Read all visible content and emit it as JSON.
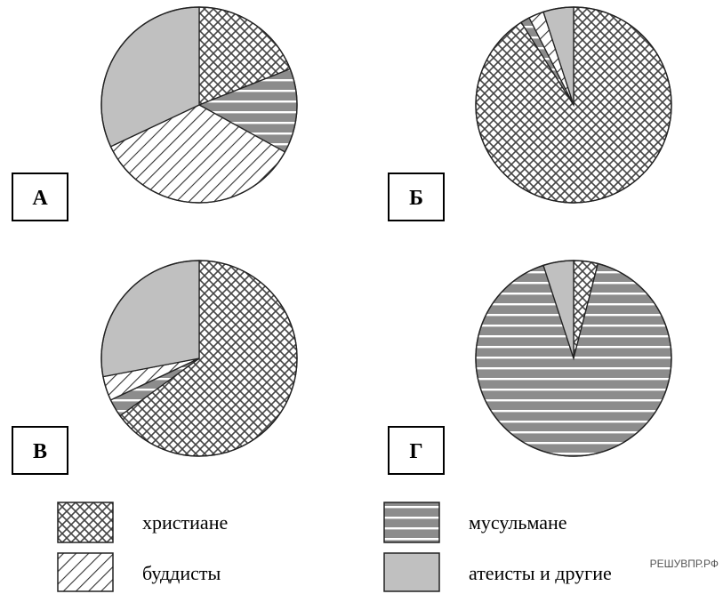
{
  "colors": {
    "christian_bg": "#ffffff",
    "muslim_bg": "#8c8c8c",
    "buddhist_bg": "#ffffff",
    "atheist_bg": "#c0c0c0",
    "stroke": "#222222"
  },
  "chart_data": [
    {
      "type": "pie",
      "label": "А",
      "slices": [
        {
          "category": "christian",
          "value": 19
        },
        {
          "category": "muslim",
          "value": 14
        },
        {
          "category": "buddhist",
          "value": 35
        },
        {
          "category": "atheist",
          "value": 32
        }
      ]
    },
    {
      "type": "pie",
      "label": "Б",
      "slices": [
        {
          "category": "christian",
          "value": 91
        },
        {
          "category": "muslim",
          "value": 1.5
        },
        {
          "category": "buddhist",
          "value": 2.5
        },
        {
          "category": "atheist",
          "value": 5
        }
      ]
    },
    {
      "type": "pie",
      "label": "В",
      "slices": [
        {
          "category": "christian",
          "value": 65
        },
        {
          "category": "muslim",
          "value": 3
        },
        {
          "category": "buddhist",
          "value": 4
        },
        {
          "category": "atheist",
          "value": 28
        }
      ]
    },
    {
      "type": "pie",
      "label": "Г",
      "slices": [
        {
          "category": "christian",
          "value": 4
        },
        {
          "category": "muslim",
          "value": 91
        },
        {
          "category": "buddhist",
          "value": 0
        },
        {
          "category": "atheist",
          "value": 5
        }
      ]
    }
  ],
  "legend": [
    {
      "category": "christian",
      "text": "христиане"
    },
    {
      "category": "buddhist",
      "text": "буддисты"
    },
    {
      "category": "muslim",
      "text": "мусульмане"
    },
    {
      "category": "atheist",
      "text": "атеисты и другие"
    }
  ],
  "watermark": "РЕШУВПР.РФ"
}
